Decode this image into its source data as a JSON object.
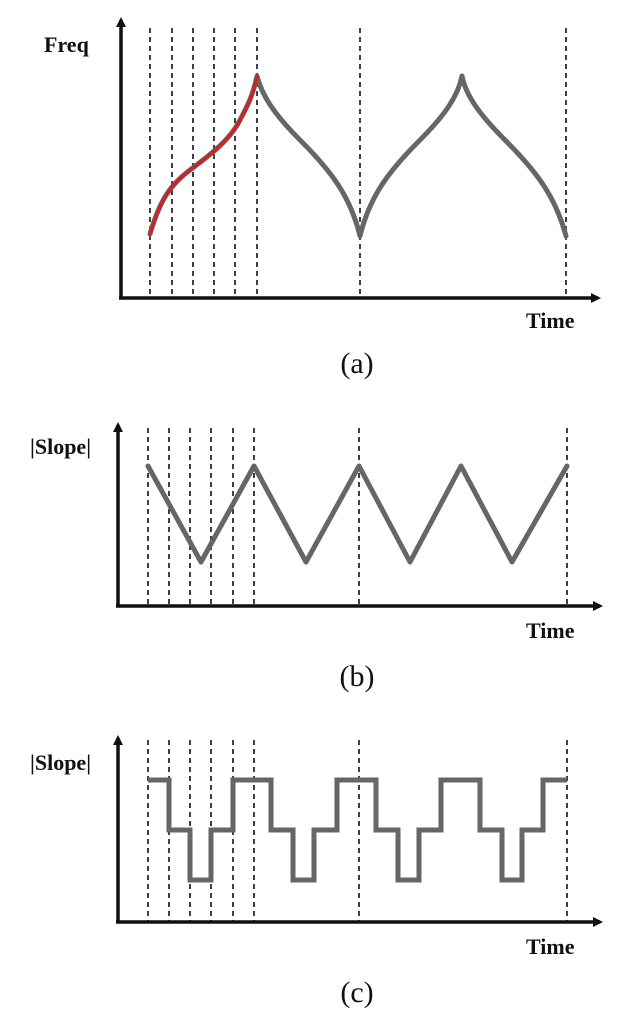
{
  "colors": {
    "axis": "#111111",
    "curve": "#666666",
    "highlight": "#d42020",
    "divider": "#111111"
  },
  "panels": [
    {
      "id": "a",
      "y_label": "Freq",
      "x_label": "Time",
      "caption": "(a)"
    },
    {
      "id": "b",
      "y_label": "|Slope|",
      "x_label": "Time",
      "caption": "(b)"
    },
    {
      "id": "c",
      "y_label": "|Slope|",
      "x_label": "Time",
      "caption": "(c)"
    }
  ]
}
